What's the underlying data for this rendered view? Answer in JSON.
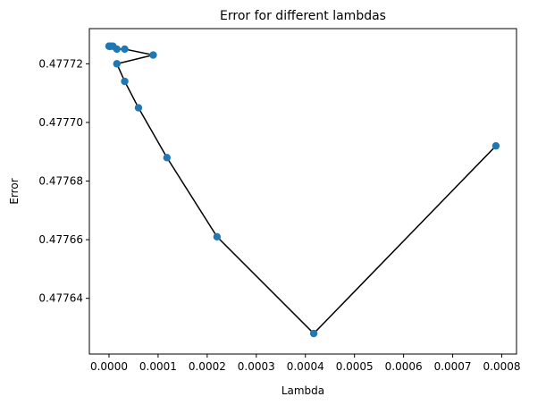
{
  "chart_data": {
    "type": "scatter",
    "title": "Error for different lambdas",
    "xlabel": "Lambda",
    "ylabel": "Error",
    "xlim": [
      -4e-05,
      0.00083
    ],
    "ylim": [
      0.477621,
      0.477732
    ],
    "x_ticks": [
      0.0,
      0.0001,
      0.0002,
      0.0003,
      0.0004,
      0.0005,
      0.0006,
      0.0007,
      0.0008
    ],
    "x_tick_labels": [
      "0.0000",
      "0.0001",
      "0.0002",
      "0.0003",
      "0.0004",
      "0.0005",
      "0.0006",
      "0.0007",
      "0.0008"
    ],
    "y_ticks": [
      0.47764,
      0.47766,
      0.47768,
      0.4777,
      0.47772
    ],
    "y_tick_labels": [
      "0.47764",
      "0.47766",
      "0.47768",
      "0.47770",
      "0.47772"
    ],
    "grid": false,
    "line_color": "#000000",
    "marker_color": "#1f77b4",
    "series": [
      {
        "x": [
          0.0,
          5e-07,
          1e-06,
          2e-06,
          4e-06,
          8e-06,
          1.6e-05,
          3.2e-05,
          9e-05,
          1.6e-05,
          3.2e-05,
          6e-05,
          0.000118,
          0.00022,
          0.000417,
          0.000788
        ],
        "y": [
          0.477726,
          0.477726,
          0.477726,
          0.477726,
          0.477726,
          0.477726,
          0.477725,
          0.477725,
          0.477723,
          0.47772,
          0.477714,
          0.477705,
          0.477688,
          0.477661,
          0.477628,
          0.477692
        ]
      }
    ]
  }
}
